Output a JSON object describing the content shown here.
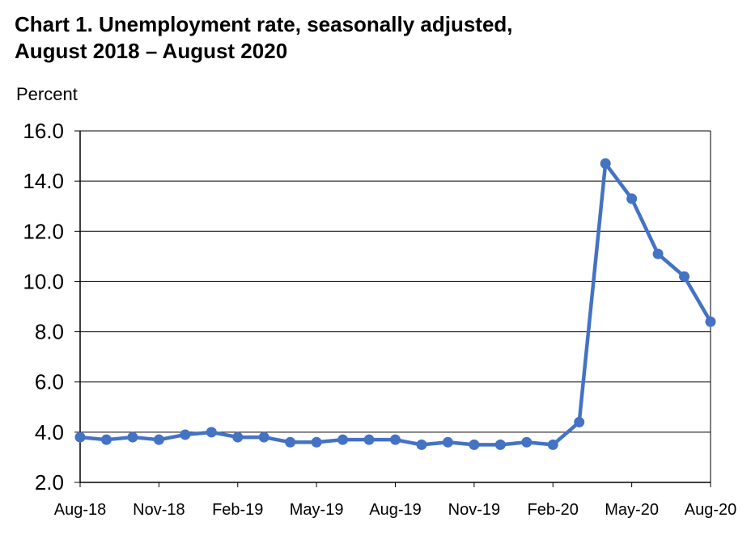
{
  "chart_data": {
    "type": "line",
    "title": "Chart 1. Unemployment rate, seasonally adjusted,",
    "subtitle": "August 2018 – August 2020",
    "ylabel": "Percent",
    "xlabel": "",
    "ylim": [
      2.0,
      16.0
    ],
    "yticks": [
      "2.0",
      "4.0",
      "6.0",
      "8.0",
      "10.0",
      "12.0",
      "14.0",
      "16.0"
    ],
    "xtick_labels": [
      "Aug-18",
      "Nov-18",
      "Feb-19",
      "May-19",
      "Aug-19",
      "Nov-19",
      "Feb-20",
      "May-20",
      "Aug-20"
    ],
    "grid": true,
    "legend": "none",
    "line_color": "#4472C4",
    "series": [
      {
        "x": [
          "Aug-18",
          "Sep-18",
          "Oct-18",
          "Nov-18",
          "Dec-18",
          "Jan-19",
          "Feb-19",
          "Mar-19",
          "Apr-19",
          "May-19",
          "Jun-19",
          "Jul-19",
          "Aug-19",
          "Sep-19",
          "Oct-19",
          "Nov-19",
          "Dec-19",
          "Jan-20",
          "Feb-20",
          "Mar-20",
          "Apr-20",
          "May-20",
          "Jun-20",
          "Jul-20",
          "Aug-20"
        ],
        "values": [
          3.8,
          3.7,
          3.8,
          3.7,
          3.9,
          4.0,
          3.8,
          3.8,
          3.6,
          3.6,
          3.7,
          3.7,
          3.7,
          3.5,
          3.6,
          3.5,
          3.5,
          3.6,
          3.5,
          4.4,
          14.7,
          13.3,
          11.1,
          10.2,
          8.4
        ]
      }
    ]
  }
}
